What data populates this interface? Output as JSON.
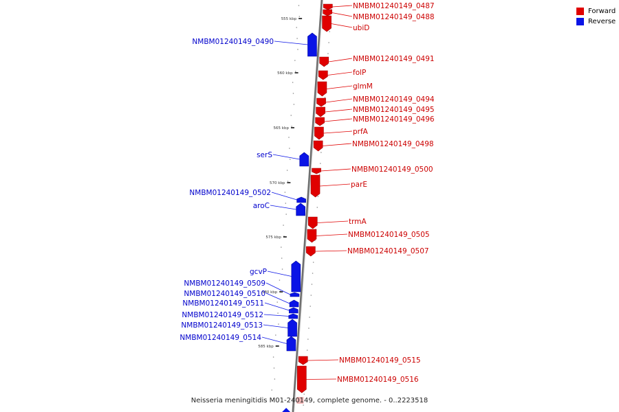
{
  "colors": {
    "forward": "#e00000",
    "reverse": "#0a14e6",
    "forward_label": "#cc0000",
    "reverse_label": "#0000cc",
    "backbone": "#777777"
  },
  "legend": [
    {
      "label": "Forward",
      "color": "#e00000"
    },
    {
      "label": "Reverse",
      "color": "#0a14e6"
    }
  ],
  "caption": "Neisseria meningitidis M01-240149, complete genome. - 0..2223518",
  "scale_ticks": [
    {
      "kbp": 555,
      "label": "555 kbp"
    },
    {
      "kbp": 560,
      "label": "560 kbp"
    },
    {
      "kbp": 565,
      "label": "565 kbp"
    },
    {
      "kbp": 570,
      "label": "570 kbp"
    },
    {
      "kbp": 575,
      "label": "575 kbp"
    },
    {
      "kbp": 580,
      "label": "580 kbp"
    },
    {
      "kbp": 585,
      "label": "585 kbp"
    }
  ],
  "genes": [
    {
      "name": "NMBM01240149_0487",
      "strand": "forward"
    },
    {
      "name": "NMBM01240149_0488",
      "strand": "forward"
    },
    {
      "name": "ubiD",
      "strand": "forward"
    },
    {
      "name": "NMBM01240149_0490",
      "strand": "reverse"
    },
    {
      "name": "NMBM01240149_0491",
      "strand": "forward"
    },
    {
      "name": "folP",
      "strand": "forward"
    },
    {
      "name": "glmM",
      "strand": "forward"
    },
    {
      "name": "NMBM01240149_0494",
      "strand": "forward"
    },
    {
      "name": "NMBM01240149_0495",
      "strand": "forward"
    },
    {
      "name": "NMBM01240149_0496",
      "strand": "forward"
    },
    {
      "name": "prfA",
      "strand": "forward"
    },
    {
      "name": "NMBM01240149_0498",
      "strand": "forward"
    },
    {
      "name": "serS",
      "strand": "reverse"
    },
    {
      "name": "NMBM01240149_0500",
      "strand": "forward"
    },
    {
      "name": "parE",
      "strand": "forward"
    },
    {
      "name": "NMBM01240149_0502",
      "strand": "reverse"
    },
    {
      "name": "aroC",
      "strand": "reverse"
    },
    {
      "name": "trmA",
      "strand": "forward"
    },
    {
      "name": "NMBM01240149_0505",
      "strand": "forward"
    },
    {
      "name": "NMBM01240149_0507",
      "strand": "forward"
    },
    {
      "name": "gcvP",
      "strand": "reverse"
    },
    {
      "name": "NMBM01240149_0509",
      "strand": "reverse"
    },
    {
      "name": "NMBM01240149_0510",
      "strand": "reverse"
    },
    {
      "name": "NMBM01240149_0511",
      "strand": "reverse"
    },
    {
      "name": "NMBM01240149_0512",
      "strand": "reverse"
    },
    {
      "name": "NMBM01240149_0513",
      "strand": "reverse"
    },
    {
      "name": "NMBM01240149_0514",
      "strand": "reverse"
    },
    {
      "name": "NMBM01240149_0515",
      "strand": "forward"
    },
    {
      "name": "NMBM01240149_0516",
      "strand": "forward"
    }
  ]
}
